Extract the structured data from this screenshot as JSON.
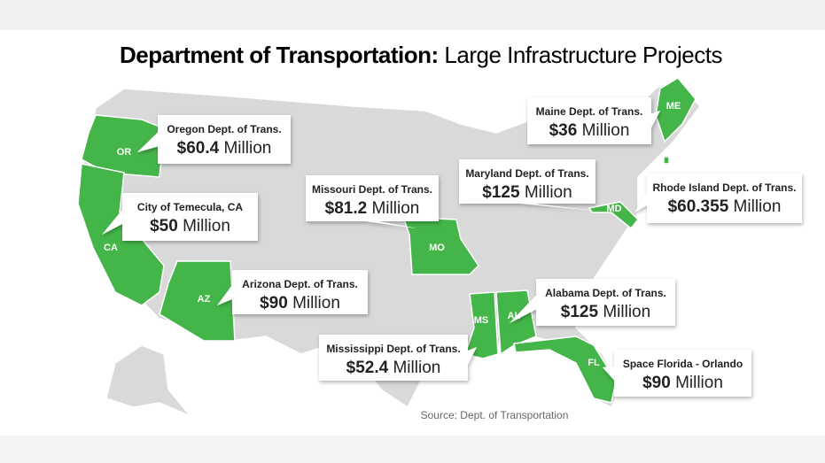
{
  "header": {
    "title_bold": "Department of Transportation:",
    "title_regular": "Large Infrastructure Projects"
  },
  "states": [
    "OR",
    "CA",
    "AZ",
    "MO",
    "MS",
    "AL",
    "FL",
    "ME",
    "MD"
  ],
  "callouts": [
    {
      "label": "Oregon Dept. of Trans.",
      "amount": "$60.4",
      "unit": "Million"
    },
    {
      "label": "City of Temecula, CA",
      "amount": "$50",
      "unit": "Million"
    },
    {
      "label": "Arizona Dept. of Trans.",
      "amount": "$90",
      "unit": "Million"
    },
    {
      "label": "Missouri Dept. of Trans.",
      "amount": "$81.2",
      "unit": "Million"
    },
    {
      "label": "Maryland Dept. of Trans.",
      "amount": "$125",
      "unit": "Million"
    },
    {
      "label": "Maine Dept. of Trans.",
      "amount": "$36",
      "unit": "Million"
    },
    {
      "label": "Rhode Island Dept. of Trans.",
      "amount": "$60.355",
      "unit": "Million"
    },
    {
      "label": "Alabama Dept. of Trans.",
      "amount": "$125",
      "unit": "Million"
    },
    {
      "label": "Mississippi  Dept. of Trans.",
      "amount": "$52.4",
      "unit": "Million"
    },
    {
      "label": "Space Florida - Orlando",
      "amount": "$90",
      "unit": "Million"
    }
  ],
  "source": "Source: Dept. of Transportation"
}
